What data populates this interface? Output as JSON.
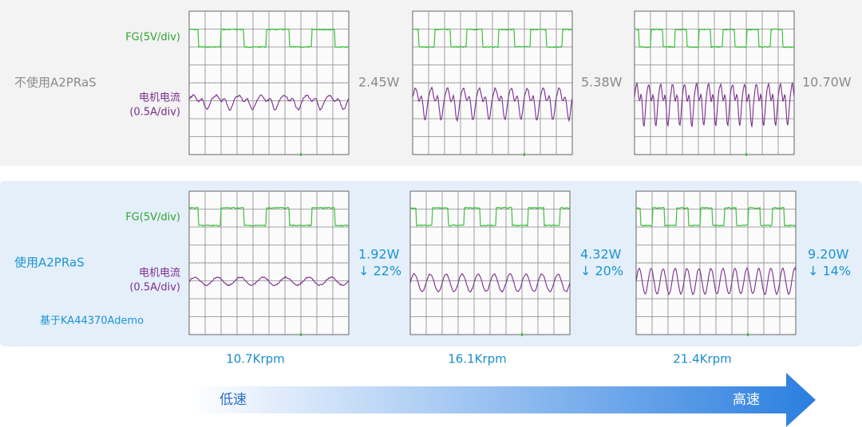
{
  "top": {
    "label": "不使用A2PRaS",
    "fg_label": "FG(5V/div)",
    "current_label": [
      "电机电流",
      "(0.5A/div)"
    ],
    "powers": [
      "2.45W",
      "5.38W",
      "10.70W"
    ]
  },
  "bottom": {
    "label": "使用A2PRaS",
    "fg_label": "FG(5V/div)",
    "current_label": [
      "电机电流",
      "(0.5A/div)"
    ],
    "note": "基于KA44370Ademo",
    "powers": [
      {
        "power": "1.92W",
        "reduction": "↓ 22%"
      },
      {
        "power": "4.32W",
        "reduction": "↓ 20%"
      },
      {
        "power": "9.20W",
        "reduction": "↓ 14%"
      }
    ]
  },
  "speeds": [
    "10.7Krpm",
    "16.1Krpm",
    "21.4Krpm"
  ],
  "arrow": {
    "start": "低速",
    "end": "高速"
  }
}
